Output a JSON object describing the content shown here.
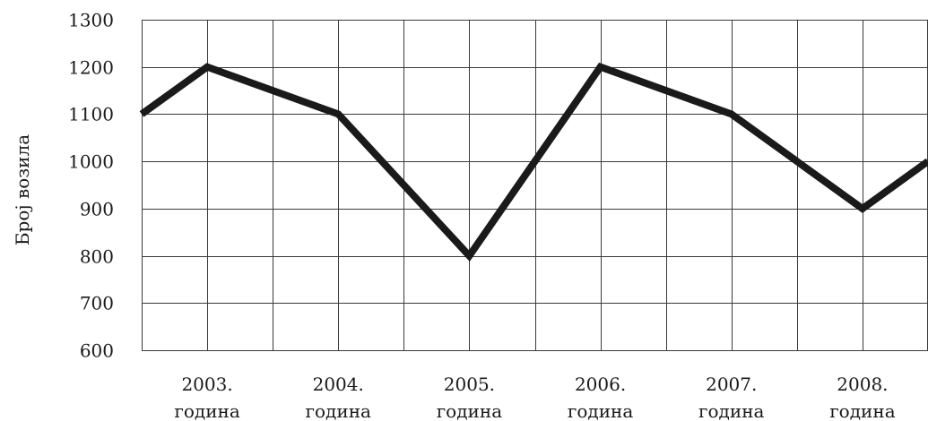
{
  "chart_data": {
    "type": "line",
    "ylabel": "Број возила",
    "xlabel": "",
    "title": "",
    "ylim": [
      600,
      1300
    ],
    "yticks": [
      "600",
      "700",
      "800",
      "900",
      "1000",
      "1100",
      "1200",
      "1300"
    ],
    "categories": [
      {
        "year": "2003.",
        "unit": "година"
      },
      {
        "year": "2004.",
        "unit": "година"
      },
      {
        "year": "2005.",
        "unit": "година"
      },
      {
        "year": "2006.",
        "unit": "година"
      },
      {
        "year": "2007.",
        "unit": "година"
      },
      {
        "year": "2008.",
        "unit": "година"
      }
    ],
    "x": [
      2002.5,
      2003,
      2004,
      2005,
      2006,
      2007,
      2008,
      2008.5
    ],
    "series": [
      {
        "values": [
          1100,
          1200,
          1100,
          800,
          1200,
          1100,
          900,
          1000
        ]
      }
    ],
    "grid": true,
    "line_color": "#1a1a1a",
    "grid_color": "#3a3a3a"
  }
}
